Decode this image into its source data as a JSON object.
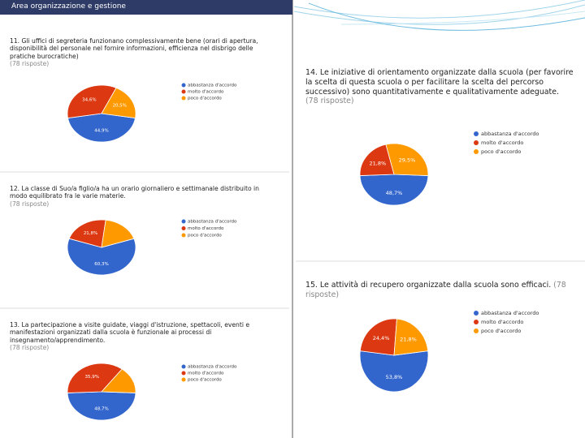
{
  "header": {
    "title": "Area organizzazione e gestione"
  },
  "chart_data": [
    {
      "type": "pie",
      "title": "11. Gli uffici di segreteria funzionano complessivamente bene (orari di apertura, disponibilità del personale nel fornire informazioni, efficienza nel disbrigo delle pratiche burocratiche)",
      "subtitle": "(78 risposte)",
      "categories": [
        "abbastanza d'accordo",
        "molto d'accordo",
        "poco d'accordo"
      ],
      "colors": [
        "#3366cc",
        "#dc3912",
        "#ff9900"
      ],
      "values": [
        44.9,
        34.6,
        20.5
      ],
      "value_labels": [
        "44,9%",
        "34,6%",
        "20,5%"
      ]
    },
    {
      "type": "pie",
      "title": "12. La classe di Suo/a figlio/a ha un orario giornaliero e settimanale distribuito in modo equilibrato fra le varie materie.",
      "subtitle": "(78 risposte)",
      "categories": [
        "abbastanza d'accordo",
        "molto d'accordo",
        "poco d'accordo"
      ],
      "colors": [
        "#3366cc",
        "#dc3912",
        "#ff9900"
      ],
      "values": [
        60.3,
        21.8,
        17.9
      ],
      "value_labels": [
        "60,3%",
        "21,8%",
        null
      ]
    },
    {
      "type": "pie",
      "title": "13. La partecipazione a visite guidate, viaggi d'istruzione, spettacoli, eventi e manifestazioni organizzati dalla scuola è funzionale ai processi di insegnamento/apprendimento.",
      "subtitle": "(78 risposte)",
      "categories": [
        "abbastanza d'accordo",
        "molto d'accordo",
        "poco d'accordo"
      ],
      "colors": [
        "#3366cc",
        "#dc3912",
        "#ff9900"
      ],
      "values": [
        48.7,
        35.9,
        15.4
      ],
      "value_labels": [
        "48,7%",
        "35,9%",
        null
      ]
    },
    {
      "type": "pie",
      "title": "14. Le iniziative di orientamento organizzate dalla scuola (per favorire la scelta di questa scuola o per facilitare la scelta del percorso successivo) sono quantitativamente e qualitativamente adeguate.",
      "subtitle": "(78 risposte)",
      "categories": [
        "abbastanza d'accordo",
        "molto d'accordo",
        "poco d'accordo"
      ],
      "colors": [
        "#3366cc",
        "#dc3912",
        "#ff9900"
      ],
      "values": [
        48.7,
        21.8,
        29.5
      ],
      "value_labels": [
        "48,7%",
        "21,8%",
        "29,5%"
      ]
    },
    {
      "type": "pie",
      "title": "15. Le attività di recupero organizzate dalla scuola sono efficaci.",
      "subtitle": "(78 risposte)",
      "categories": [
        "abbastanza d'accordo",
        "molto d'accordo",
        "poco d'accordo"
      ],
      "colors": [
        "#3366cc",
        "#dc3912",
        "#ff9900"
      ],
      "values": [
        53.8,
        24.4,
        21.8
      ],
      "value_labels": [
        "53,8%",
        "24,4%",
        "21,8%"
      ]
    }
  ]
}
